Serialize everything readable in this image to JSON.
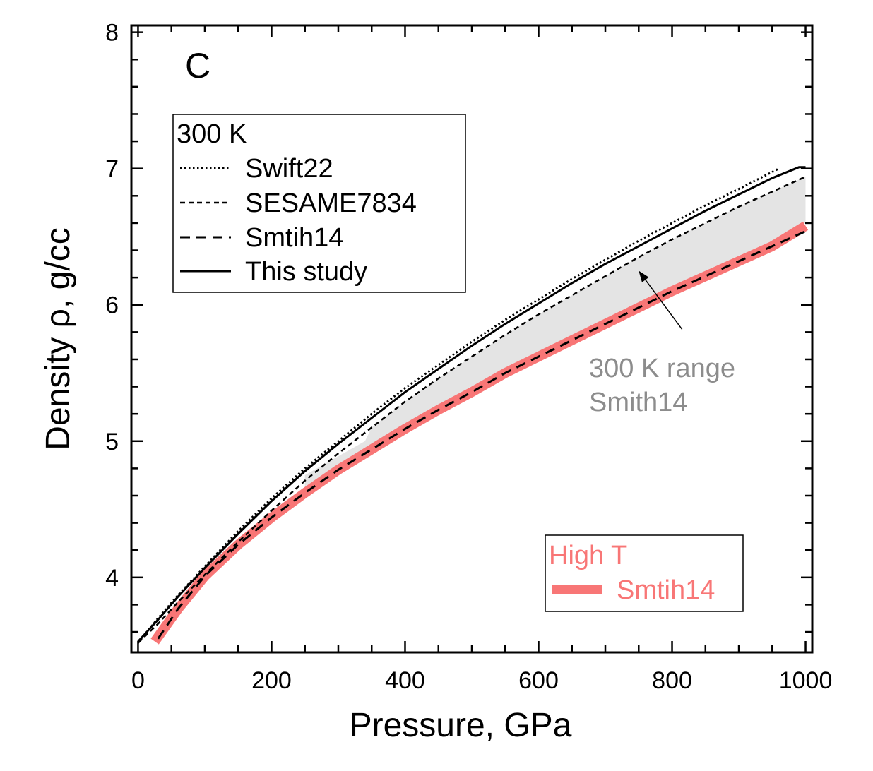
{
  "chart_data": {
    "type": "line",
    "panel_label": "C",
    "xlabel": "Pressure, GPa",
    "ylabel": "Density ρ,  g/cc",
    "xlim": [
      -10,
      1010
    ],
    "ylim": [
      3.45,
      8.05
    ],
    "x_ticks": [
      0,
      200,
      400,
      600,
      800,
      1000
    ],
    "y_ticks": [
      4,
      5,
      6,
      7,
      8
    ],
    "x_ticks_minor_step": 50,
    "y_ticks_minor_step": 0.2,
    "legend_300K": {
      "title": "300 K",
      "entries": [
        "Swift22",
        "SESAME7834",
        "Smtih14",
        "This study"
      ]
    },
    "legend_highT": {
      "title": "High T",
      "entries": [
        "Smtih14"
      ]
    },
    "annotation": {
      "lines": [
        "300 K range",
        "Smith14"
      ],
      "arrow_to": [
        750,
        6.25
      ],
      "arrow_from": [
        815,
        5.82
      ]
    },
    "colors": {
      "highT": "#f87676",
      "annotation": "#8c8c8c",
      "range": "#e4e4e4",
      "axis": "#000000"
    },
    "series": [
      {
        "name": "Swift22",
        "style": "dotted",
        "x": [
          0,
          30,
          60,
          100,
          150,
          200,
          250,
          300,
          350,
          400,
          450,
          500,
          550,
          600,
          650,
          700,
          750,
          800,
          850,
          900,
          960
        ],
        "y": [
          3.52,
          3.7,
          3.87,
          4.08,
          4.34,
          4.58,
          4.8,
          5.0,
          5.2,
          5.39,
          5.56,
          5.73,
          5.89,
          6.04,
          6.19,
          6.33,
          6.47,
          6.6,
          6.73,
          6.85,
          7.0
        ]
      },
      {
        "name": "SESAME7834",
        "style": "dashed-short",
        "x": [
          0,
          30,
          60,
          100,
          150,
          200,
          250,
          300,
          350,
          400,
          450,
          500,
          550,
          600,
          650,
          700,
          750,
          800,
          850,
          900,
          950,
          1000
        ],
        "y": [
          3.52,
          3.66,
          3.82,
          4.02,
          4.26,
          4.49,
          4.71,
          4.91,
          5.1,
          5.29,
          5.46,
          5.62,
          5.78,
          5.93,
          6.07,
          6.21,
          6.35,
          6.48,
          6.6,
          6.72,
          6.83,
          6.94
        ]
      },
      {
        "name": "Smtih14",
        "style": "dashed-long",
        "x": [
          30,
          60,
          100,
          150,
          200,
          250,
          300,
          350,
          400,
          450,
          500,
          550,
          600,
          650,
          700,
          750,
          800,
          850,
          900,
          950,
          1000
        ],
        "y": [
          3.55,
          3.77,
          4.01,
          4.24,
          4.44,
          4.62,
          4.79,
          4.94,
          5.09,
          5.23,
          5.36,
          5.5,
          5.62,
          5.74,
          5.86,
          5.98,
          6.1,
          6.21,
          6.32,
          6.43,
          6.54
        ]
      },
      {
        "name": "This study",
        "style": "solid",
        "x": [
          0,
          30,
          60,
          100,
          150,
          200,
          250,
          300,
          350,
          400,
          450,
          500,
          550,
          600,
          650,
          700,
          750,
          800,
          850,
          900,
          950,
          990,
          1000
        ],
        "y": [
          3.53,
          3.69,
          3.86,
          4.07,
          4.32,
          4.56,
          4.78,
          4.98,
          5.17,
          5.36,
          5.53,
          5.7,
          5.86,
          6.01,
          6.16,
          6.3,
          6.43,
          6.56,
          6.69,
          6.81,
          6.93,
          7.01,
          7.01
        ]
      },
      {
        "name": "High T Smtih14",
        "style": "thick-red",
        "x": [
          25,
          60,
          100,
          150,
          200,
          250,
          300,
          350,
          400,
          450,
          500,
          550,
          600,
          650,
          700,
          750,
          800,
          850,
          900,
          950,
          1000
        ],
        "y": [
          3.53,
          3.77,
          4.01,
          4.24,
          4.44,
          4.62,
          4.79,
          4.94,
          5.09,
          5.23,
          5.36,
          5.5,
          5.62,
          5.74,
          5.86,
          5.98,
          6.1,
          6.21,
          6.32,
          6.43,
          6.58
        ]
      }
    ],
    "range_band": {
      "name": "300 K range Smith14",
      "upper_x": [
        250,
        340,
        350,
        400,
        450,
        500,
        550,
        600,
        650,
        700,
        750,
        800,
        850,
        900,
        950,
        1000
      ],
      "upper_y": [
        4.75,
        5.0,
        5.1,
        5.29,
        5.46,
        5.62,
        5.78,
        5.93,
        6.07,
        6.21,
        6.35,
        6.48,
        6.6,
        6.72,
        6.83,
        6.94
      ],
      "lower_x": [
        1000,
        950,
        900,
        850,
        800,
        750,
        700,
        650,
        600,
        550,
        500,
        450,
        400,
        350,
        300,
        250
      ],
      "lower_y": [
        6.6,
        6.47,
        6.36,
        6.25,
        6.14,
        6.02,
        5.9,
        5.78,
        5.66,
        5.54,
        5.4,
        5.27,
        5.13,
        4.98,
        4.83,
        4.66
      ]
    }
  }
}
